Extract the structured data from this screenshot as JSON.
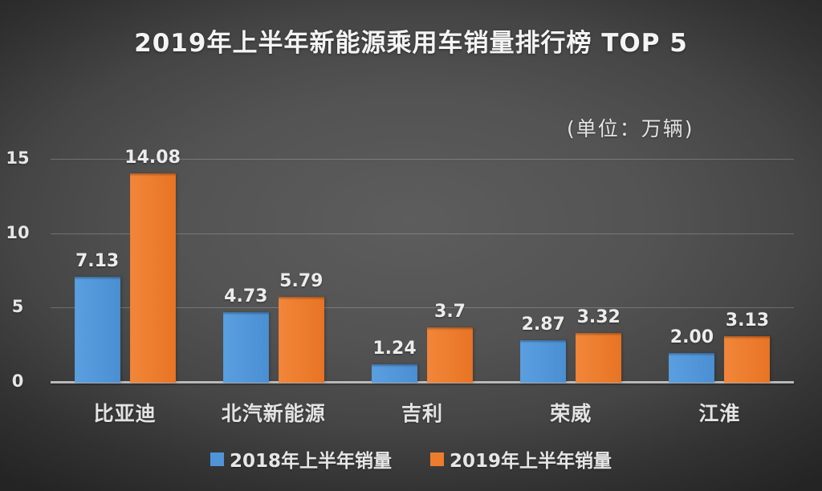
{
  "title": "2019年上半年新能源乘用车销量排行榜 TOP 5",
  "unit_label": "(单位：万辆)",
  "colors": {
    "series_2018_blue": "#4f94d8",
    "series_2019_orange": "#ed7d2c",
    "background_center": "#5d5d5d",
    "background_corner": "#242424",
    "text": "#e6e6e6",
    "gridline": "#777777",
    "axis_baseline": "#b9b9b9"
  },
  "chart_data": {
    "type": "bar",
    "title": "2019年上半年新能源乘用车销量排行榜 TOP 5",
    "subtitle": "(单位：万辆)",
    "xlabel": "",
    "ylabel": "",
    "categories": [
      "比亚迪",
      "北汽新能源",
      "吉利",
      "荣威",
      "江淮"
    ],
    "series": [
      {
        "name": "2018年上半年销量",
        "color": "#4f94d8",
        "values": [
          7.13,
          4.73,
          1.24,
          2.87,
          2.0
        ],
        "labels": [
          "7.13",
          "4.73",
          "1.24",
          "2.87",
          "2.00"
        ]
      },
      {
        "name": "2019年上半年销量",
        "color": "#ed7d2c",
        "values": [
          14.08,
          5.79,
          3.7,
          3.32,
          3.13
        ],
        "labels": [
          "14.08",
          "5.79",
          "3.7",
          "3.32",
          "3.13"
        ]
      }
    ],
    "y_axis": {
      "ticks": [
        0,
        5,
        10,
        15
      ],
      "ylim": [
        0,
        15.75
      ]
    },
    "grid": true,
    "legend_position": "bottom"
  },
  "legend": {
    "items": [
      {
        "label": "2018年上半年销量",
        "color": "#4f94d8"
      },
      {
        "label": "2019年上半年销量",
        "color": "#ed7d2c"
      }
    ]
  }
}
